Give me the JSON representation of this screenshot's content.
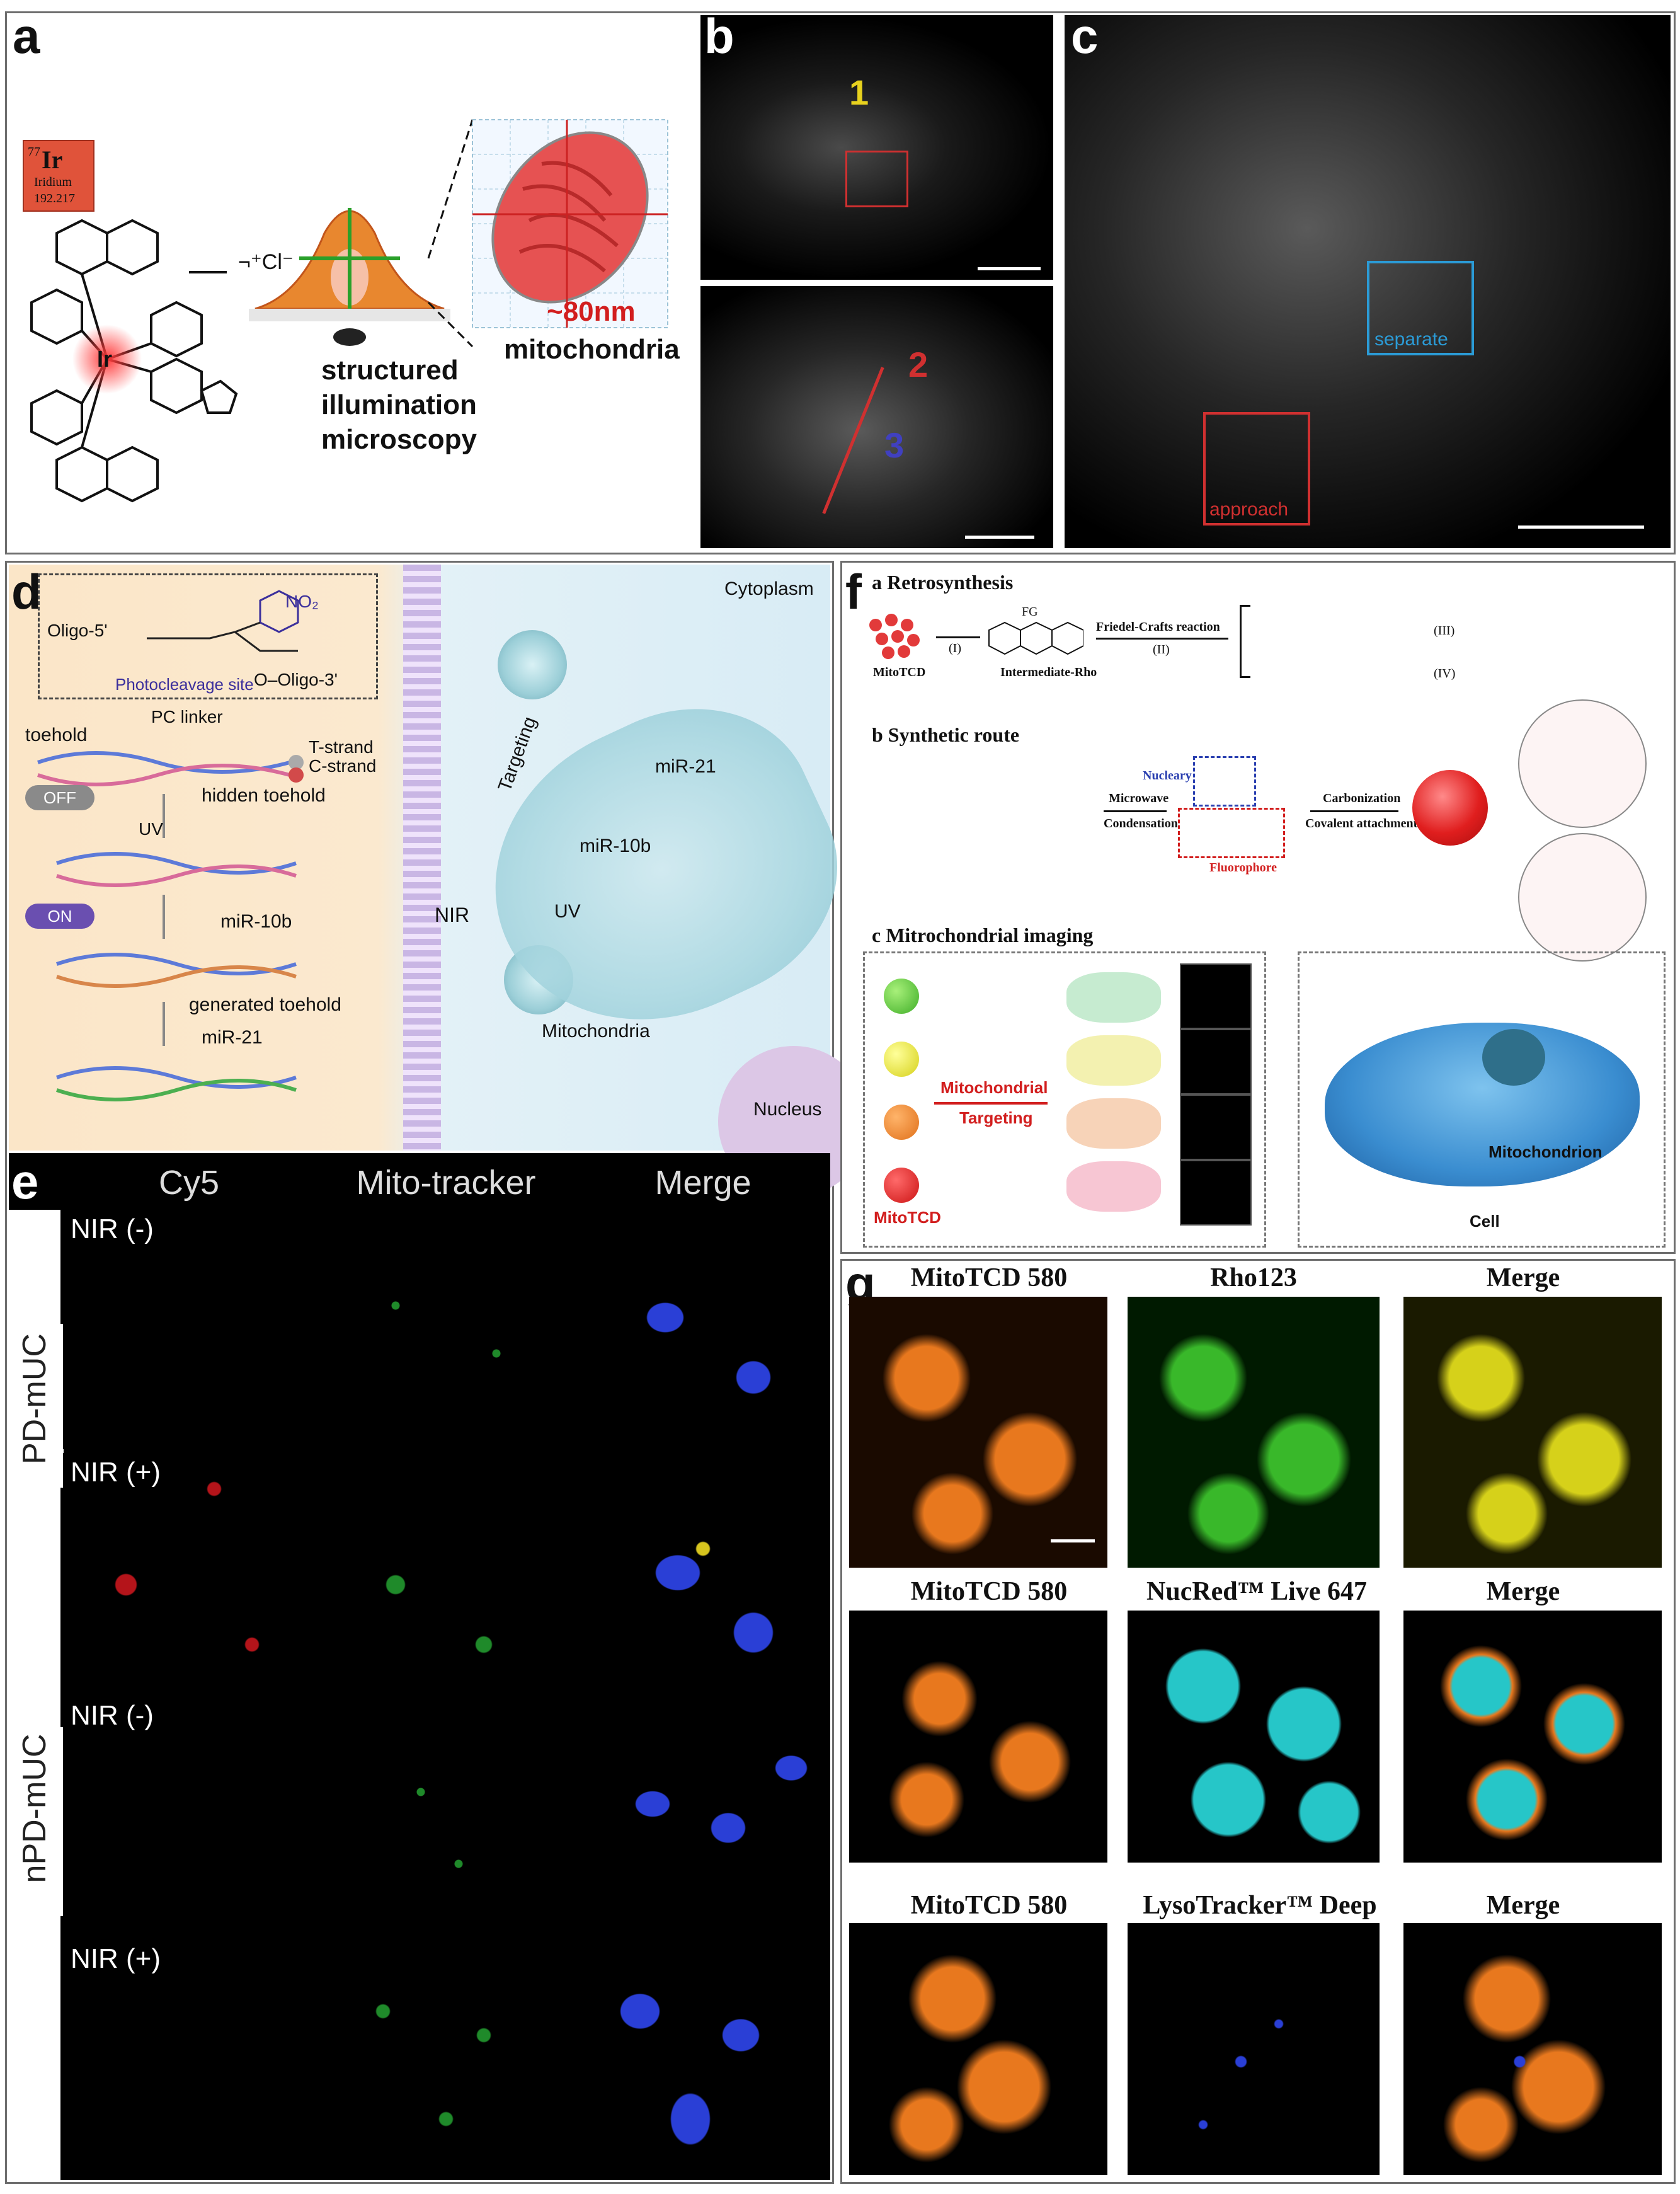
{
  "panel_a": {
    "label": "a",
    "element_number": "77",
    "element_symbol": "Ir",
    "element_name": "Iridium",
    "element_mass": "192.217",
    "metal_center": "Ir",
    "charge": "¬⁺Cl⁻",
    "size": "~80nm",
    "organelle": "mitochondria",
    "technique": [
      "structured",
      "illumination",
      "microscopy"
    ]
  },
  "panel_b": {
    "label": "b",
    "marker_1": "1",
    "marker_2": "2",
    "marker_3": "3"
  },
  "panel_c": {
    "label": "c",
    "separate": "separate",
    "approach": "approach"
  },
  "panel_d": {
    "label": "d",
    "oligo5": "Oligo-5'",
    "oligo3": "O–Oligo-3'",
    "photocleavage": "Photocleavage site",
    "no2": "NO₂",
    "toehold": "toehold",
    "pc_linker": "PC linker",
    "t_strand": "T-strand",
    "c_strand": "C-strand",
    "off": "OFF",
    "on": "ON",
    "uv": "UV",
    "hidden_toehold": "hidden toehold",
    "mir10b": "miR-10b",
    "generated_toehold": "generated toehold",
    "mir21": "miR-21",
    "cytoplasm": "Cytoplasm",
    "targeting": "Targeting",
    "nir": "NIR",
    "mitochondria": "Mitochondria",
    "nucleus": "Nucleus"
  },
  "panel_e": {
    "label": "e",
    "columns": [
      "Cy5",
      "Mito-tracker",
      "Merge"
    ],
    "rows": [
      "NIR (-)",
      "NIR (+)",
      "NIR (-)",
      "NIR (+)"
    ],
    "groups": [
      "PD-mUC",
      "nPD-mUC"
    ]
  },
  "panel_f": {
    "label": "f",
    "a_title": "a Retrosynthesis",
    "b_title": "b Synthetic route",
    "c_title": "c Mitrochondrial imaging",
    "mitotcd": "MitoTCD",
    "intermediate": "Intermediate-Rho",
    "friedel": "Friedel-Crafts reaction",
    "step_i": "(I)",
    "step_ii": "(II)",
    "step_iii": "(III)",
    "step_iv": "(IV)",
    "fg": "FG",
    "microwave": "Microwave",
    "condensation": "Condensation",
    "nucleary": "Nucleary",
    "fluorophore": "Fluorophore",
    "carbonization": "Carbonization",
    "covalent": "Covalent attachment",
    "mito_targeting": [
      "Mitochondrial",
      "Targeting"
    ],
    "mitochondrion": "Mitochondrion",
    "cell": "Cell",
    "mitotcd_red": "MitoTCD"
  },
  "panel_g": {
    "label": "g",
    "rows": [
      [
        "MitoTCD 580",
        "Rho123",
        "Merge"
      ],
      [
        "MitoTCD 580",
        "NucRed™ Live 647",
        "Merge"
      ],
      [
        "MitoTCD 580",
        "LysoTracker™ Deep Red",
        "Merge"
      ]
    ]
  }
}
